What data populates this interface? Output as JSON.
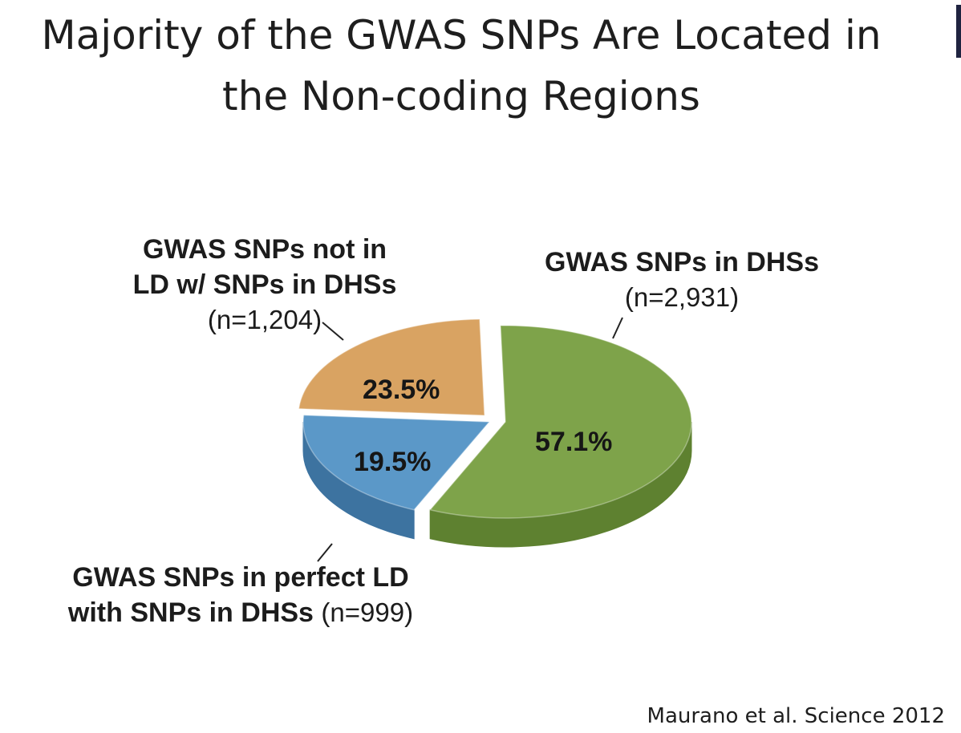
{
  "slide": {
    "title_line1": "Majority of the GWAS SNPs Are Located in",
    "title_line2": "the Non-coding Regions",
    "citation": "Maurano et al. Science 2012"
  },
  "chart_data": {
    "type": "pie",
    "style": "3d",
    "title": "",
    "slices": [
      {
        "label_line1": "GWAS SNPs in DHSs",
        "label_line2": "",
        "count_label": "(n=2,931)",
        "n": 2931,
        "percent": 57.1,
        "percent_label": "57.1%",
        "color": "#7ea34a",
        "side_color": "#5e8130"
      },
      {
        "label_line1": "GWAS SNPs in perfect LD",
        "label_line2": "with SNPs in DHSs",
        "count_label": "(n=999)",
        "n": 999,
        "percent": 19.5,
        "percent_label": "19.5%",
        "color": "#5b98c8",
        "side_color": "#3d73a0"
      },
      {
        "label_line1": "GWAS SNPs not in",
        "label_line2": "LD w/ SNPs in DHSs",
        "count_label": "(n=1,204)",
        "n": 1204,
        "percent": 23.5,
        "percent_label": "23.5%",
        "color": "#d9a362",
        "side_color": "#b07c3f"
      }
    ]
  }
}
